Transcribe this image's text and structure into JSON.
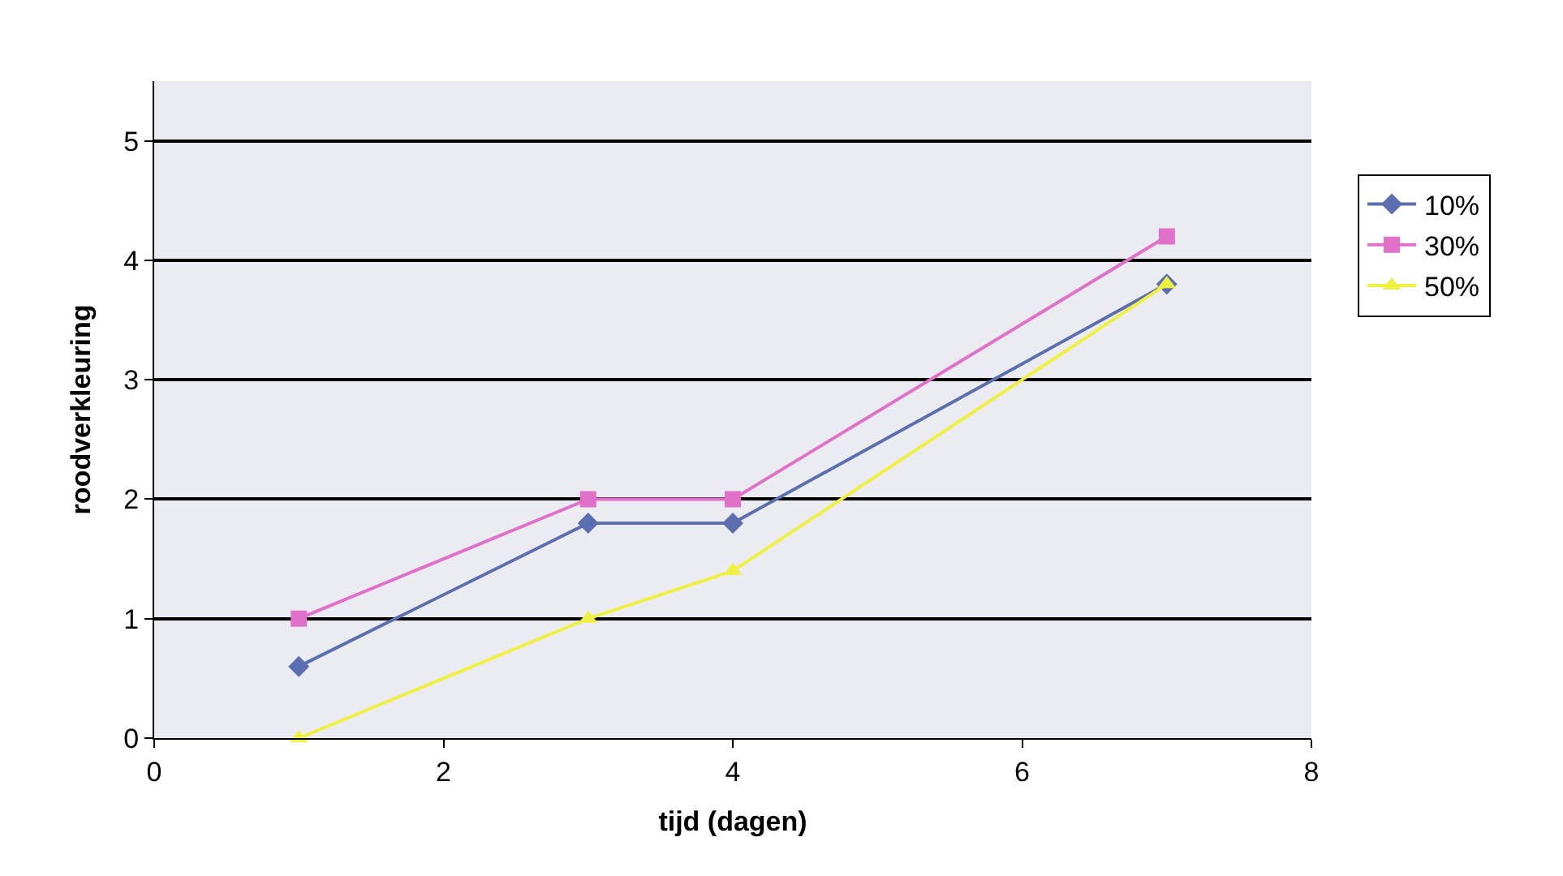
{
  "chart_data": {
    "type": "line",
    "xlabel": "tijd (dagen)",
    "ylabel": "roodverkleuring",
    "x": [
      1,
      3,
      4,
      7
    ],
    "series": [
      {
        "name": "10%",
        "color": "#5b6fb0",
        "marker": "diamond",
        "values": [
          0.6,
          1.8,
          1.8,
          3.8
        ]
      },
      {
        "name": "30%",
        "color": "#e070c8",
        "marker": "square",
        "values": [
          1,
          2,
          2,
          4.2
        ]
      },
      {
        "name": "50%",
        "color": "#f0f040",
        "marker": "triangle",
        "values": [
          0,
          1,
          1.4,
          3.8
        ]
      }
    ],
    "xlim": [
      0,
      8
    ],
    "xticks": [
      0,
      2,
      4,
      6,
      8
    ],
    "ylim": [
      0,
      5.5
    ],
    "yticks": [
      0,
      1,
      2,
      3,
      4,
      5
    ],
    "grid": "y",
    "legend": "right",
    "line_style": "solid"
  }
}
